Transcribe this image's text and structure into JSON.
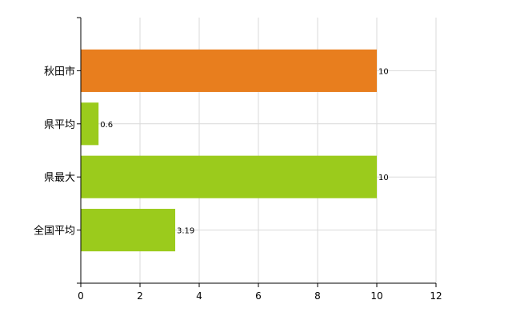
{
  "chart_data": {
    "type": "bar",
    "orientation": "horizontal",
    "categories": [
      "秋田市",
      "県平均",
      "県最大",
      "全国平均"
    ],
    "values": [
      10,
      0.6,
      10,
      3.19
    ],
    "value_labels": [
      "10",
      "0.6",
      "10",
      "3.19"
    ],
    "colors": [
      "#e87e1e",
      "#9bcb1c",
      "#9bcb1c",
      "#9bcb1c"
    ],
    "title": "",
    "xlabel": "",
    "ylabel": "",
    "xlim": [
      0,
      12
    ],
    "xticks": [
      "0",
      "2",
      "4",
      "6",
      "8",
      "10",
      "12"
    ],
    "grid": true,
    "legend": "none"
  }
}
